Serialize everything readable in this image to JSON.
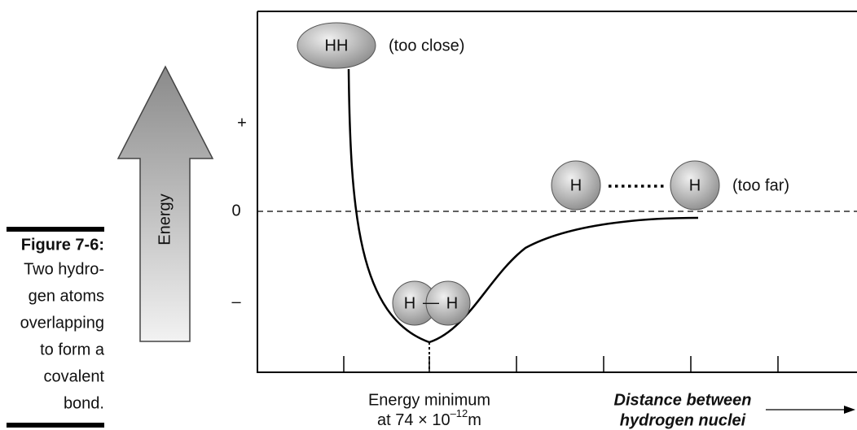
{
  "caption": {
    "label": "Figure 7-6:",
    "lines": [
      "Two hydro-",
      "gen atoms",
      "overlapping",
      "to form a",
      "covalent",
      "bond."
    ]
  },
  "axis": {
    "y_label": "Energy",
    "y_ticks": [
      "+",
      "0",
      "–"
    ],
    "x_label": [
      "Distance between",
      "hydrogen nuclei"
    ]
  },
  "minimum_note": {
    "line1": "Energy minimum",
    "prefix": "at 74 × 10",
    "exponent": "–12",
    "unit": "m"
  },
  "molecules": {
    "too_close": {
      "label": "HH",
      "note": "(too close)"
    },
    "bonded": {
      "left": "H",
      "bond": "—",
      "right": "H"
    },
    "too_far": {
      "left": "H",
      "right": "H",
      "note": "(too far)"
    }
  }
}
